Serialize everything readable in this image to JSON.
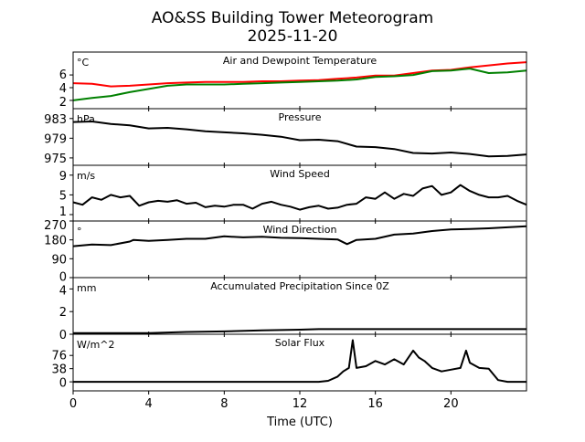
{
  "title_line1": "AO&SS Building Tower Meteorogram",
  "title_line2": "2025-11-20",
  "chart_data": {
    "type": "line",
    "xlabel": "Time (UTC)",
    "xlim": [
      0,
      24
    ],
    "xticks": [
      0,
      4,
      8,
      12,
      16,
      20
    ],
    "xtick_labels": [
      "0",
      "4",
      "8",
      "12",
      "16",
      "20"
    ],
    "panels": [
      {
        "title": "Air and Dewpoint Temperature",
        "unit": "°C",
        "ylim": [
          0.7,
          9.6
        ],
        "yticks": [
          2,
          4,
          6
        ],
        "ytick_labels": [
          "2",
          "4",
          "6"
        ],
        "series": [
          {
            "name": "Air Temperature",
            "color": "#ff0000",
            "x": [
              0,
              1,
              2,
              3,
              4,
              5,
              6,
              7,
              8,
              9,
              10,
              11,
              12,
              13,
              14,
              15,
              16,
              17,
              18,
              19,
              20,
              21,
              22,
              23,
              24
            ],
            "y": [
              4.7,
              4.6,
              4.2,
              4.3,
              4.5,
              4.7,
              4.8,
              4.9,
              4.9,
              4.9,
              5.0,
              5.0,
              5.1,
              5.2,
              5.4,
              5.6,
              5.9,
              5.9,
              6.3,
              6.7,
              6.8,
              7.2,
              7.5,
              7.8,
              8.0
            ]
          },
          {
            "name": "Dewpoint",
            "color": "#008000",
            "x": [
              0,
              1,
              2,
              3,
              4,
              5,
              6,
              7,
              8,
              9,
              10,
              11,
              12,
              13,
              14,
              15,
              16,
              17,
              18,
              19,
              20,
              21,
              22,
              23,
              24
            ],
            "y": [
              2.0,
              2.4,
              2.7,
              3.3,
              3.8,
              4.3,
              4.5,
              4.5,
              4.5,
              4.6,
              4.7,
              4.8,
              4.9,
              5.0,
              5.1,
              5.3,
              5.7,
              5.8,
              6.0,
              6.6,
              6.7,
              7.0,
              6.3,
              6.4,
              6.7
            ]
          }
        ]
      },
      {
        "title": "Pressure",
        "unit": "hPa",
        "ylim": [
          973.5,
          985.0
        ],
        "yticks": [
          975,
          979,
          983
        ],
        "ytick_labels": [
          "975",
          "979",
          "983"
        ],
        "series": [
          {
            "name": "Pressure",
            "color": "#000000",
            "x": [
              0,
              1,
              2,
              3,
              4,
              5,
              6,
              7,
              8,
              9,
              10,
              11,
              12,
              13,
              14,
              15,
              16,
              17,
              18,
              19,
              20,
              21,
              22,
              23,
              24
            ],
            "y": [
              982.3,
              982.4,
              981.9,
              981.6,
              981.0,
              981.1,
              980.8,
              980.4,
              980.2,
              980.0,
              979.7,
              979.3,
              978.6,
              978.7,
              978.4,
              977.3,
              977.2,
              976.8,
              976.0,
              975.9,
              976.1,
              975.8,
              975.3,
              975.4,
              975.7
            ]
          }
        ]
      },
      {
        "title": "Wind Speed",
        "unit": "m/s",
        "ylim": [
          -0.3,
          11.0
        ],
        "yticks": [
          1,
          5,
          9
        ],
        "ytick_labels": [
          "1",
          "5",
          "9"
        ],
        "series": [
          {
            "name": "Wind Speed",
            "color": "#000000",
            "x": [
              0,
              0.5,
              1,
              1.5,
              2,
              2.5,
              3,
              3.5,
              4,
              4.5,
              5,
              5.5,
              6,
              6.5,
              7,
              7.5,
              8,
              8.5,
              9,
              9.5,
              10,
              10.5,
              11,
              11.5,
              12,
              12.5,
              13,
              13.5,
              14,
              14.5,
              15,
              15.5,
              16,
              16.5,
              17,
              17.5,
              18,
              18.5,
              19,
              19.5,
              20,
              20.5,
              21,
              21.5,
              22,
              22.5,
              23,
              23.5,
              24
            ],
            "y": [
              3.5,
              3.0,
              4.5,
              4.0,
              5.0,
              4.5,
              4.8,
              2.8,
              3.5,
              3.8,
              3.6,
              3.9,
              3.2,
              3.4,
              2.5,
              2.8,
              2.6,
              3.0,
              3.0,
              2.2,
              3.2,
              3.6,
              3.0,
              2.6,
              2.0,
              2.5,
              2.8,
              2.2,
              2.4,
              3.0,
              3.2,
              4.5,
              4.2,
              5.5,
              4.2,
              5.2,
              4.8,
              6.3,
              6.8,
              5.0,
              5.5,
              7.0,
              5.8,
              5.0,
              4.5,
              4.5,
              4.8,
              3.8,
              3.0
            ]
          }
        ]
      },
      {
        "title": "Wind Direction",
        "unit": "°",
        "ylim": [
          0,
          270
        ],
        "yticks": [
          0,
          90,
          180,
          270
        ],
        "ytick_labels": [
          "0",
          "90",
          "180",
          "270"
        ],
        "series": [
          {
            "name": "Wind Direction",
            "color": "#000000",
            "x": [
              0,
              1,
              2,
              3,
              3.2,
              4,
              5,
              6,
              7,
              8,
              9,
              10,
              11,
              12,
              13,
              14,
              14.5,
              15,
              16,
              17,
              18,
              19,
              20,
              21,
              22,
              23,
              24
            ],
            "y": [
              150,
              158,
              155,
              172,
              180,
              175,
              180,
              185,
              185,
              197,
              192,
              195,
              190,
              188,
              185,
              182,
              160,
              180,
              185,
              205,
              210,
              222,
              230,
              232,
              235,
              240,
              245
            ]
          }
        ]
      },
      {
        "title": "Accumulated Precipitation Since 0Z",
        "unit": "mm",
        "ylim": [
          0,
          5.0
        ],
        "yticks": [
          0,
          2,
          4
        ],
        "ytick_labels": [
          "0",
          "2",
          "4"
        ],
        "series": [
          {
            "name": "Accumulated Precipitation",
            "color": "#000000",
            "x": [
              0,
              4,
              6,
              8,
              10,
              12,
              13,
              24
            ],
            "y": [
              0.1,
              0.1,
              0.2,
              0.25,
              0.35,
              0.4,
              0.45,
              0.45
            ]
          }
        ]
      },
      {
        "title": "Solar Flux",
        "unit": "W/m^2",
        "ylim": [
          -26,
          137
        ],
        "yticks": [
          0,
          38,
          76
        ],
        "ytick_labels": [
          "0",
          "38",
          "76"
        ],
        "series": [
          {
            "name": "Solar Flux",
            "color": "#000000",
            "x": [
              0,
              13,
              13.5,
              14,
              14.3,
              14.6,
              14.8,
              15,
              15.5,
              16,
              16.5,
              17,
              17.5,
              18,
              18.3,
              18.6,
              19,
              19.5,
              20,
              20.5,
              20.8,
              21,
              21.5,
              22,
              22.5,
              23,
              24
            ],
            "y": [
              0,
              0,
              3,
              15,
              30,
              40,
              120,
              40,
              45,
              60,
              50,
              65,
              50,
              90,
              70,
              60,
              40,
              30,
              35,
              40,
              90,
              55,
              40,
              38,
              5,
              0,
              0
            ]
          }
        ]
      }
    ]
  }
}
